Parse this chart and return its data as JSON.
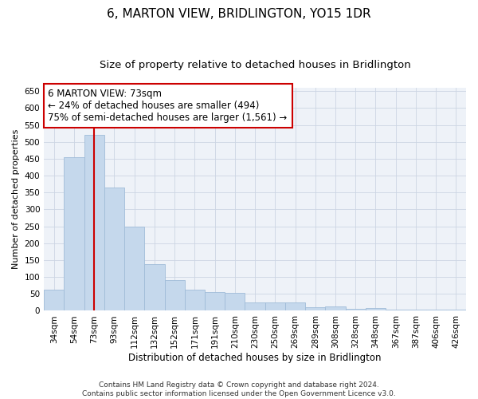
{
  "title": "6, MARTON VIEW, BRIDLINGTON, YO15 1DR",
  "subtitle": "Size of property relative to detached houses in Bridlington",
  "xlabel": "Distribution of detached houses by size in Bridlington",
  "ylabel": "Number of detached properties",
  "categories": [
    "34sqm",
    "54sqm",
    "73sqm",
    "93sqm",
    "112sqm",
    "132sqm",
    "152sqm",
    "171sqm",
    "191sqm",
    "210sqm",
    "230sqm",
    "250sqm",
    "269sqm",
    "289sqm",
    "308sqm",
    "328sqm",
    "348sqm",
    "367sqm",
    "387sqm",
    "406sqm",
    "426sqm"
  ],
  "values": [
    62,
    455,
    520,
    365,
    248,
    138,
    90,
    62,
    55,
    53,
    25,
    25,
    25,
    10,
    12,
    6,
    8,
    4,
    4,
    4,
    3
  ],
  "bar_color": "#c5d8ec",
  "bar_edge_color": "#a0bcd8",
  "marker_index": 2,
  "marker_color": "#cc0000",
  "annotation_line1": "6 MARTON VIEW: 73sqm",
  "annotation_line2": "← 24% of detached houses are smaller (494)",
  "annotation_line3": "75% of semi-detached houses are larger (1,561) →",
  "annotation_box_color": "#ffffff",
  "annotation_box_edge_color": "#cc0000",
  "ylim": [
    0,
    660
  ],
  "yticks": [
    0,
    50,
    100,
    150,
    200,
    250,
    300,
    350,
    400,
    450,
    500,
    550,
    600,
    650
  ],
  "grid_color": "#ccd5e3",
  "background_color": "#eef2f8",
  "footer_text": "Contains HM Land Registry data © Crown copyright and database right 2024.\nContains public sector information licensed under the Open Government Licence v3.0.",
  "title_fontsize": 11,
  "subtitle_fontsize": 9.5,
  "xlabel_fontsize": 8.5,
  "ylabel_fontsize": 8,
  "tick_fontsize": 7.5,
  "annotation_fontsize": 8.5,
  "footer_fontsize": 6.5
}
